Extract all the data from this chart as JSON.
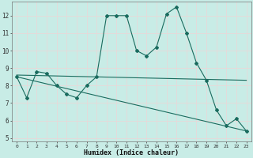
{
  "xlabel": "Humidex (Indice chaleur)",
  "xlim": [
    -0.5,
    23.5
  ],
  "ylim": [
    4.8,
    12.8
  ],
  "yticks": [
    5,
    6,
    7,
    8,
    9,
    10,
    11,
    12
  ],
  "xticks": [
    0,
    1,
    2,
    3,
    4,
    5,
    6,
    7,
    8,
    9,
    10,
    11,
    12,
    13,
    14,
    15,
    16,
    17,
    18,
    19,
    20,
    21,
    22,
    23
  ],
  "bg_color": "#c8ece6",
  "line_color": "#1a6b5e",
  "grid_color": "#e8d8d8",
  "line1_x": [
    0,
    1,
    2,
    3,
    4,
    5,
    6,
    7,
    8,
    9,
    10,
    11,
    12,
    13,
    14,
    15,
    16,
    17,
    18,
    19,
    20,
    21,
    22,
    23
  ],
  "line1_y": [
    8.5,
    7.3,
    8.8,
    8.7,
    8.0,
    7.5,
    7.3,
    8.0,
    8.5,
    12.0,
    12.0,
    12.0,
    10.0,
    9.7,
    10.2,
    12.1,
    12.5,
    11.0,
    9.3,
    8.3,
    6.6,
    5.7,
    6.1,
    5.4
  ],
  "line2_x": [
    0,
    23
  ],
  "line2_y": [
    8.6,
    8.3
  ],
  "line3_x": [
    0,
    23
  ],
  "line3_y": [
    8.5,
    5.4
  ],
  "figsize": [
    3.2,
    2.0
  ],
  "dpi": 100
}
